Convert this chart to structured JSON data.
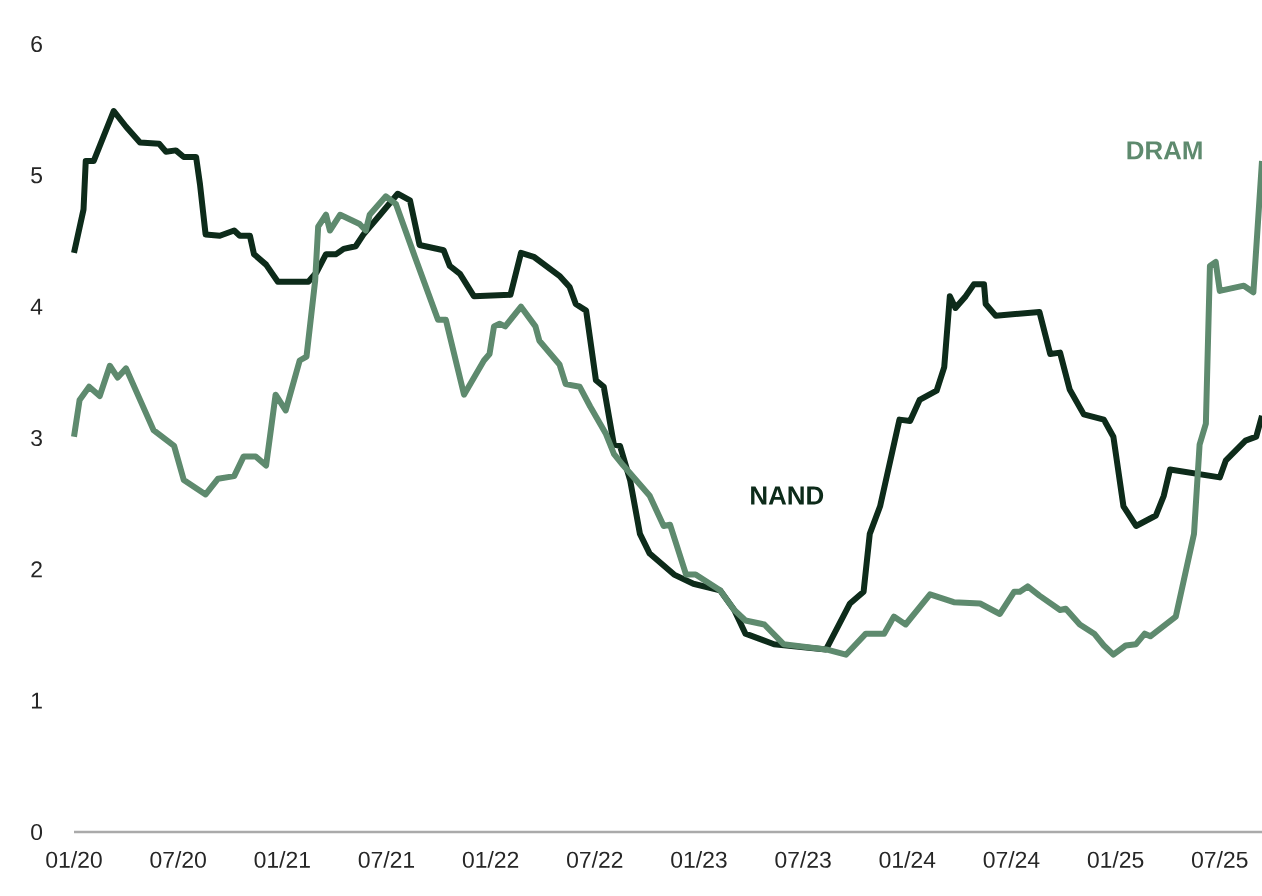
{
  "chart_data": {
    "type": "line",
    "xlim": [
      "2020-01-01",
      "2025-09-14"
    ],
    "xticks": [
      {
        "value": "2020-01-01",
        "label": "01/20"
      },
      {
        "value": "2020-07-01",
        "label": "07/20"
      },
      {
        "value": "2021-01-01",
        "label": "01/21"
      },
      {
        "value": "2021-07-01",
        "label": "07/21"
      },
      {
        "value": "2022-01-01",
        "label": "01/22"
      },
      {
        "value": "2022-07-01",
        "label": "07/22"
      },
      {
        "value": "2023-01-01",
        "label": "01/23"
      },
      {
        "value": "2023-07-01",
        "label": "07/23"
      },
      {
        "value": "2024-01-01",
        "label": "01/24"
      },
      {
        "value": "2024-07-01",
        "label": "07/24"
      },
      {
        "value": "2025-01-01",
        "label": "01/25"
      },
      {
        "value": "2025-07-01",
        "label": "07/25"
      }
    ],
    "ylim": [
      0,
      6
    ],
    "yticks": [
      0,
      1,
      2,
      3,
      4,
      5,
      6
    ],
    "grid": false,
    "marker": "none",
    "line_style": "solid",
    "series": [
      {
        "name": "NAND",
        "color": "#0d2b1a",
        "x": [
          "2020-01-01",
          "2020-01-18",
          "2020-01-22",
          "2020-02-05",
          "2020-03-10",
          "2020-04-01",
          "2020-04-25",
          "2020-05-29",
          "2020-06-10",
          "2020-06-27",
          "2020-07-11",
          "2020-08-02",
          "2020-08-09",
          "2020-08-19",
          "2020-09-13",
          "2020-10-08",
          "2020-10-18",
          "2020-11-05",
          "2020-11-12",
          "2020-12-03",
          "2020-12-24",
          "2021-02-15",
          "2021-02-28",
          "2021-03-17",
          "2021-04-04",
          "2021-04-17",
          "2021-05-08",
          "2021-05-22",
          "2021-06-20",
          "2021-07-21",
          "2021-08-12",
          "2021-08-29",
          "2021-10-10",
          "2021-10-21",
          "2021-11-08",
          "2021-12-02",
          "2022-02-05",
          "2022-02-22",
          "2022-03-16",
          "2022-05-01",
          "2022-05-18",
          "2022-05-29",
          "2022-06-16",
          "2022-07-03",
          "2022-07-17",
          "2022-08-04",
          "2022-08-15",
          "2022-09-02",
          "2022-09-19",
          "2022-10-06",
          "2022-11-18",
          "2022-12-22",
          "2023-02-07",
          "2023-03-02",
          "2023-03-22",
          "2023-05-11",
          "2023-08-11",
          "2023-09-22",
          "2023-10-16",
          "2023-10-27",
          "2023-11-14",
          "2023-12-18",
          "2024-01-06",
          "2024-01-23",
          "2024-02-21",
          "2024-03-05",
          "2024-03-15",
          "2024-03-25",
          "2024-04-12",
          "2024-04-26",
          "2024-05-14",
          "2024-05-17",
          "2024-06-04",
          "2024-08-20",
          "2024-09-08",
          "2024-09-25",
          "2024-10-12",
          "2024-11-06",
          "2024-12-11",
          "2024-12-28",
          "2025-01-15",
          "2025-02-06",
          "2025-03-11",
          "2025-03-25",
          "2025-04-05",
          "2025-07-01",
          "2025-07-12",
          "2025-08-16",
          "2025-09-04",
          "2025-09-14"
        ],
        "values": [
          4.41,
          4.74,
          5.11,
          5.11,
          5.49,
          5.37,
          5.25,
          5.24,
          5.18,
          5.19,
          5.14,
          5.14,
          4.93,
          4.55,
          4.54,
          4.58,
          4.54,
          4.54,
          4.4,
          4.32,
          4.19,
          4.19,
          4.26,
          4.4,
          4.4,
          4.44,
          4.46,
          4.55,
          4.7,
          4.86,
          4.81,
          4.47,
          4.43,
          4.31,
          4.25,
          4.08,
          4.09,
          4.41,
          4.38,
          4.23,
          4.15,
          4.02,
          3.97,
          3.44,
          3.39,
          2.95,
          2.94,
          2.68,
          2.27,
          2.12,
          1.96,
          1.89,
          1.84,
          1.69,
          1.51,
          1.43,
          1.39,
          1.74,
          1.83,
          2.27,
          2.48,
          3.14,
          3.13,
          3.29,
          3.36,
          3.54,
          4.08,
          3.99,
          4.08,
          4.17,
          4.17,
          4.02,
          3.93,
          3.96,
          3.64,
          3.65,
          3.37,
          3.18,
          3.14,
          3.01,
          2.48,
          2.33,
          2.41,
          2.56,
          2.76,
          2.7,
          2.83,
          2.98,
          3.01,
          3.17
        ]
      },
      {
        "name": "DRAM",
        "color": "#5e8a6e",
        "x": [
          "2020-01-01",
          "2020-01-11",
          "2020-01-28",
          "2020-02-15",
          "2020-03-03",
          "2020-03-17",
          "2020-04-01",
          "2020-05-19",
          "2020-06-24",
          "2020-07-11",
          "2020-08-19",
          "2020-09-10",
          "2020-10-08",
          "2020-10-25",
          "2020-11-15",
          "2020-12-03",
          "2020-12-20",
          "2021-01-07",
          "2021-02-01",
          "2021-02-12",
          "2021-02-26",
          "2021-03-03",
          "2021-03-17",
          "2021-03-24",
          "2021-04-11",
          "2021-05-15",
          "2021-05-26",
          "2021-06-02",
          "2021-06-30",
          "2021-07-18",
          "2021-08-19",
          "2021-09-30",
          "2021-10-14",
          "2021-11-15",
          "2021-12-20",
          "2021-12-30",
          "2022-01-07",
          "2022-01-17",
          "2022-01-27",
          "2022-02-22",
          "2022-03-19",
          "2022-03-26",
          "2022-04-30",
          "2022-05-11",
          "2022-06-05",
          "2022-06-23",
          "2022-07-21",
          "2022-08-04",
          "2022-08-21",
          "2022-10-06",
          "2022-10-31",
          "2022-11-11",
          "2022-12-09",
          "2022-12-26",
          "2023-02-07",
          "2023-03-02",
          "2023-03-22",
          "2023-04-24",
          "2023-05-28",
          "2023-08-11",
          "2023-09-15",
          "2023-10-20",
          "2023-11-21",
          "2023-12-08",
          "2023-12-29",
          "2024-02-10",
          "2024-03-22",
          "2024-05-07",
          "2024-06-11",
          "2024-07-06",
          "2024-07-16",
          "2024-07-30",
          "2024-08-20",
          "2024-09-25",
          "2024-10-05",
          "2024-10-30",
          "2024-11-24",
          "2024-12-11",
          "2024-12-28",
          "2025-01-19",
          "2025-02-06",
          "2025-02-20",
          "2025-03-01",
          "2025-04-15",
          "2025-04-29",
          "2025-05-17",
          "2025-05-27",
          "2025-06-07",
          "2025-06-14",
          "2025-06-24",
          "2025-07-01",
          "2025-08-13",
          "2025-08-30",
          "2025-09-14"
        ],
        "values": [
          3.01,
          3.29,
          3.39,
          3.32,
          3.55,
          3.46,
          3.53,
          3.06,
          2.94,
          2.68,
          2.57,
          2.69,
          2.71,
          2.86,
          2.86,
          2.79,
          3.33,
          3.21,
          3.59,
          3.62,
          4.2,
          4.61,
          4.7,
          4.58,
          4.7,
          4.63,
          4.58,
          4.7,
          4.84,
          4.78,
          4.4,
          3.9,
          3.9,
          3.33,
          3.59,
          3.64,
          3.85,
          3.87,
          3.85,
          4.0,
          3.85,
          3.74,
          3.56,
          3.41,
          3.39,
          3.24,
          3.03,
          2.88,
          2.79,
          2.56,
          2.33,
          2.34,
          1.96,
          1.96,
          1.84,
          1.69,
          1.61,
          1.58,
          1.43,
          1.39,
          1.35,
          1.51,
          1.51,
          1.64,
          1.58,
          1.81,
          1.75,
          1.74,
          1.66,
          1.83,
          1.83,
          1.87,
          1.8,
          1.69,
          1.7,
          1.58,
          1.51,
          1.42,
          1.35,
          1.42,
          1.43,
          1.51,
          1.49,
          1.64,
          1.92,
          2.27,
          2.95,
          3.11,
          4.31,
          4.34,
          4.12,
          4.16,
          4.11,
          5.11
        ]
      }
    ]
  }
}
